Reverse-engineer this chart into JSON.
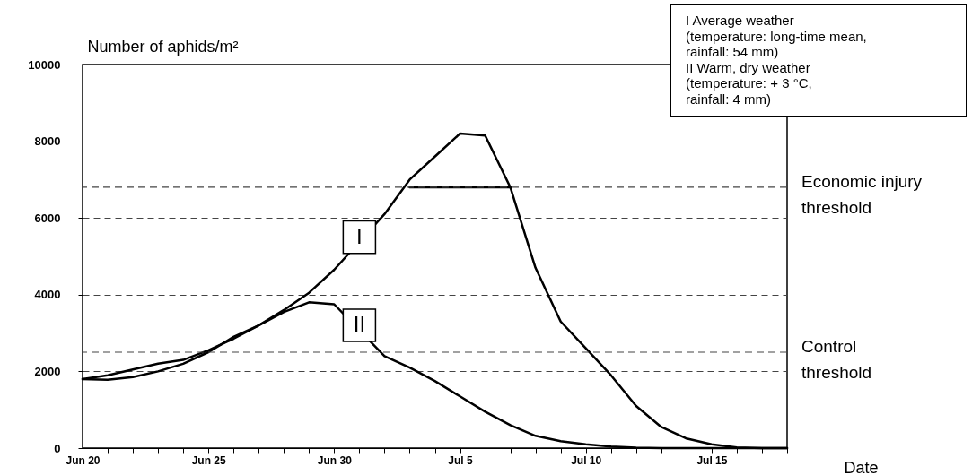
{
  "chart_data": {
    "type": "line",
    "xlabel": "Date",
    "ylabel": "Number of aphids/m²",
    "xlim": [
      "--06-20",
      "--07-18"
    ],
    "ylim": [
      0,
      10000
    ],
    "yticks": [
      0,
      2000,
      4000,
      6000,
      8000,
      10000
    ],
    "xticks": [
      {
        "value": "--06-20",
        "label": "Jun 20"
      },
      {
        "value": "--06-21",
        "label": null
      },
      {
        "value": "--06-22",
        "label": null
      },
      {
        "value": "--06-23",
        "label": null
      },
      {
        "value": "--06-24",
        "label": null
      },
      {
        "value": "--06-25",
        "label": "Jun 25"
      },
      {
        "value": "--06-26",
        "label": null
      },
      {
        "value": "--06-27",
        "label": null
      },
      {
        "value": "--06-28",
        "label": null
      },
      {
        "value": "--06-29",
        "label": null
      },
      {
        "value": "--06-30",
        "label": "Jun 30"
      },
      {
        "value": "--07-01",
        "label": null
      },
      {
        "value": "--07-02",
        "label": null
      },
      {
        "value": "--07-03",
        "label": null
      },
      {
        "value": "--07-04",
        "label": null
      },
      {
        "value": "--07-05",
        "label": "Jul 5"
      },
      {
        "value": "--07-06",
        "label": null
      },
      {
        "value": "--07-07",
        "label": null
      },
      {
        "value": "--07-08",
        "label": null
      },
      {
        "value": "--07-09",
        "label": null
      },
      {
        "value": "--07-10",
        "label": "Jul 10"
      },
      {
        "value": "--07-11",
        "label": null
      },
      {
        "value": "--07-12",
        "label": null
      },
      {
        "value": "--07-13",
        "label": null
      },
      {
        "value": "--07-14",
        "label": null
      },
      {
        "value": "--07-15",
        "label": "Jul 15"
      },
      {
        "value": "--07-16",
        "label": null
      },
      {
        "value": "--07-17",
        "label": null
      },
      {
        "value": "--07-18",
        "label": null
      }
    ],
    "grid": "y",
    "series": [
      {
        "color": "#000000",
        "x": [
          "--06-20",
          "--06-21",
          "--06-22",
          "--06-23",
          "--06-24",
          "--06-25",
          "--06-26",
          "--06-27",
          "--06-28",
          "--06-29",
          "--06-30",
          "--07-02",
          "--07-03",
          "--07-04",
          "--07-05",
          "--07-06",
          "--07-07",
          "--07-08",
          "--07-09",
          "--07-10",
          "--07-11",
          "--07-12",
          "--07-13",
          "--07-14",
          "--07-15",
          "--07-16",
          "--07-17",
          "--07-18"
        ],
        "values": [
          1800,
          1900,
          2050,
          2200,
          2300,
          2550,
          2850,
          3200,
          3600,
          4050,
          4650,
          6100,
          7000,
          7600,
          8200,
          8150,
          6800,
          4700,
          3300,
          2600,
          1900,
          1100,
          550,
          250,
          100,
          20,
          0,
          0
        ]
      },
      {
        "color": "#000000",
        "x": [
          "--06-20",
          "--06-21",
          "--06-22",
          "--06-23",
          "--06-24",
          "--06-25",
          "--06-26",
          "--06-27",
          "--06-28",
          "--06-29",
          "--06-30",
          "--07-02",
          "--07-03",
          "--07-04",
          "--07-05",
          "--07-06",
          "--07-07",
          "--07-08",
          "--07-09",
          "--07-10",
          "--07-11",
          "--07-12",
          "--07-13",
          "--07-14",
          "--07-15",
          "--07-16",
          "--07-17",
          "--07-18"
        ],
        "values": [
          1800,
          1780,
          1850,
          2000,
          2200,
          2500,
          2900,
          3200,
          3550,
          3800,
          3750,
          2400,
          2100,
          1750,
          1350,
          950,
          600,
          320,
          180,
          100,
          40,
          10,
          0,
          0,
          0,
          0,
          0,
          0
        ]
      },
      {
        "color": "#000000",
        "x": [
          "--07-03",
          "--07-07"
        ],
        "values": [
          6800,
          6800
        ]
      }
    ],
    "ref_lines": [
      {
        "axis": "y",
        "value": 6800,
        "label": "Economic injury threshold",
        "line_style": "dashed",
        "color": "#444444"
      },
      {
        "axis": "y",
        "value": 2500,
        "label": "Control threshold",
        "line_style": "dashed",
        "color": "#444444"
      }
    ],
    "annotations": [
      {
        "text": "I",
        "x": "--07-01",
        "y": 5500
      },
      {
        "text": "II",
        "x": "--07-01",
        "y": 3200
      },
      "I  Average weather",
      "(temperature: long-time mean,",
      "rainfall: 54 mm)",
      "II Warm, dry weather",
      "(temperature: + 3 °C,",
      "rainfall: 4 mm)"
    ]
  }
}
